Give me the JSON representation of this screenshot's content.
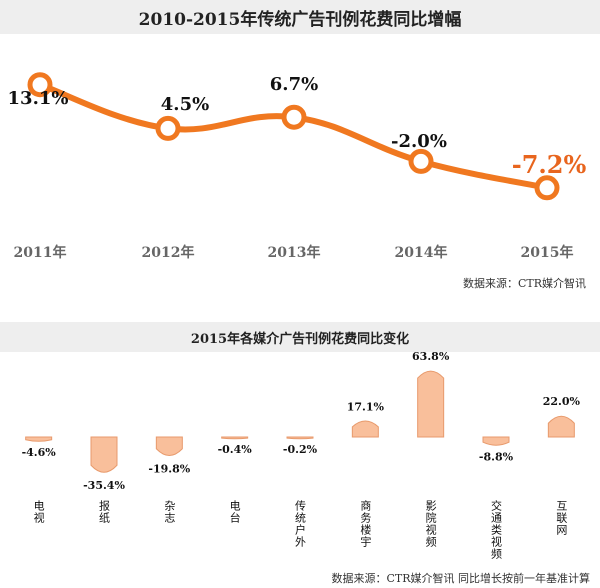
{
  "chart_data": [
    {
      "type": "line",
      "title": "2010-2015年传统广告刊例花费同比增幅",
      "categories": [
        "2011年",
        "2012年",
        "2013年",
        "2014年",
        "2015年"
      ],
      "values": [
        13.1,
        4.5,
        6.7,
        -2.0,
        -7.2
      ],
      "value_labels": [
        "13.1%",
        "4.5%",
        "6.7%",
        "-2.0%",
        "-7.2%"
      ],
      "ylim": [
        -10,
        16
      ],
      "grid": false,
      "line_color": "#f07820",
      "highlight_label_color": "#e8651e",
      "source": "数据来源：CTR媒介智讯"
    },
    {
      "type": "bar",
      "title": "2015年各媒介广告刊例花费同比变化",
      "categories": [
        "电视",
        "报纸",
        "杂志",
        "电台",
        "传统户外",
        "商务楼宇",
        "影院视频",
        "交通类视频",
        "互联网"
      ],
      "values": [
        -4.6,
        -35.4,
        -19.8,
        -0.4,
        -0.2,
        17.1,
        63.8,
        -8.8,
        22.0
      ],
      "value_labels": [
        "-4.6%",
        "-35.4%",
        "-19.8%",
        "-0.4%",
        "-0.2%",
        "17.1%",
        "63.8%",
        "-8.8%",
        "22.0%"
      ],
      "ylim": [
        -40,
        70
      ],
      "grid": false,
      "bar_color": "#f9bf9b",
      "bar_edge_color": "#e89a6c",
      "source": "数据来源：CTR媒介智讯   同比增长按前一年基准计算"
    }
  ]
}
